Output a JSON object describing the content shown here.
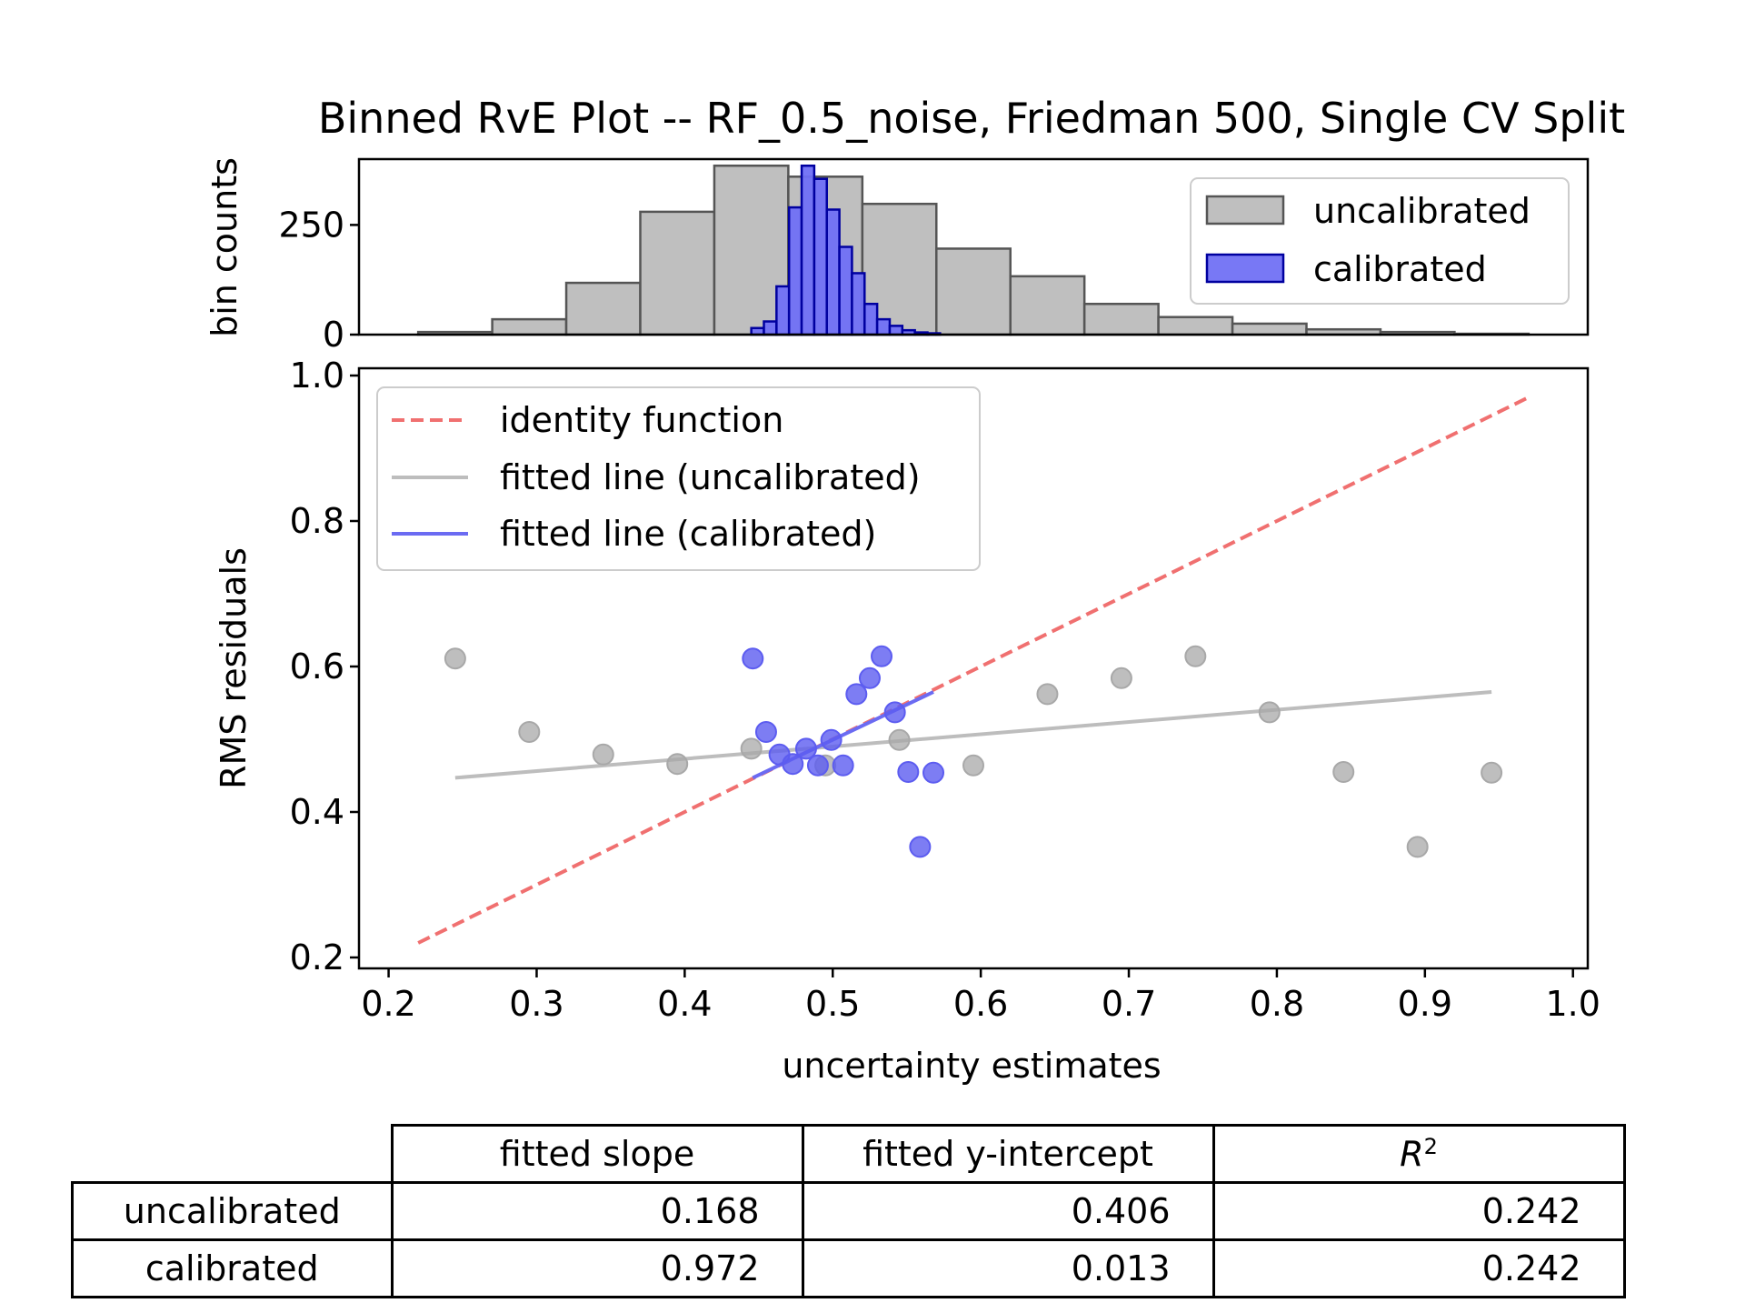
{
  "chart_data": [
    {
      "type": "bar",
      "subplot": "histogram",
      "title": "Binned RvE Plot -- RF_0.5_noise, Friedman 500, Single CV Split",
      "ylabel": "bin counts",
      "ylim": [
        0,
        400
      ],
      "yticks": [
        0,
        250
      ],
      "legend": {
        "placement": "top-right",
        "entries": [
          "uncalibrated",
          "calibrated"
        ]
      },
      "series": [
        {
          "name": "uncalibrated",
          "color": "#bfbfbf",
          "edge_color": "#555555",
          "bin_edges": [
            0.22,
            0.27,
            0.32,
            0.37,
            0.42,
            0.47,
            0.52,
            0.57,
            0.62,
            0.67,
            0.72,
            0.77,
            0.82,
            0.87,
            0.92,
            0.97
          ],
          "counts": [
            6,
            35,
            118,
            280,
            385,
            360,
            298,
            196,
            133,
            70,
            40,
            25,
            12,
            6,
            2
          ]
        },
        {
          "name": "calibrated",
          "color": "#7070f5",
          "edge_color": "#0000a0",
          "bin_edges": [
            0.445,
            0.4535,
            0.462,
            0.4705,
            0.479,
            0.4875,
            0.496,
            0.5045,
            0.513,
            0.5215,
            0.53,
            0.5385,
            0.547,
            0.5555,
            0.564,
            0.5725
          ],
          "counts": [
            15,
            30,
            110,
            290,
            385,
            355,
            285,
            200,
            140,
            70,
            35,
            20,
            10,
            5,
            3
          ]
        }
      ]
    },
    {
      "type": "scatter",
      "subplot": "rve",
      "xlabel": "uncertainty estimates",
      "ylabel": "RMS residuals",
      "xlim": [
        0.18,
        1.01
      ],
      "ylim": [
        0.185,
        1.01
      ],
      "xticks": [
        "0.2",
        "0.3",
        "0.4",
        "0.5",
        "0.6",
        "0.7",
        "0.8",
        "0.9",
        "1.0"
      ],
      "yticks": [
        "0.2",
        "0.4",
        "0.6",
        "0.8",
        "1.0"
      ],
      "legend": {
        "placement": "upper-left",
        "entries": [
          "identity function",
          "fitted line (uncalibrated)",
          "fitted line (calibrated)"
        ]
      },
      "lines": [
        {
          "name": "identity function",
          "style": "dashed",
          "color": "#f07070",
          "x": [
            0.22,
            0.97
          ],
          "y": [
            0.22,
            0.97
          ]
        },
        {
          "name": "fitted line (uncalibrated)",
          "style": "solid",
          "color": "#bdbdbd",
          "x": [
            0.245,
            0.945
          ],
          "y": [
            0.447,
            0.565
          ]
        },
        {
          "name": "fitted line (calibrated)",
          "style": "solid",
          "color": "#6b6bf2",
          "x": [
            0.446,
            0.568
          ],
          "y": [
            0.447,
            0.565
          ]
        }
      ],
      "series": [
        {
          "name": "uncalibrated",
          "color": "#a8a8a8",
          "points": [
            [
              0.245,
              0.611
            ],
            [
              0.295,
              0.51
            ],
            [
              0.345,
              0.479
            ],
            [
              0.395,
              0.466
            ],
            [
              0.445,
              0.487
            ],
            [
              0.495,
              0.464
            ],
            [
              0.545,
              0.499
            ],
            [
              0.595,
              0.464
            ],
            [
              0.645,
              0.562
            ],
            [
              0.695,
              0.584
            ],
            [
              0.745,
              0.614
            ],
            [
              0.795,
              0.537
            ],
            [
              0.845,
              0.455
            ],
            [
              0.895,
              0.352
            ],
            [
              0.945,
              0.454
            ]
          ]
        },
        {
          "name": "calibrated",
          "color": "#5c5cf0",
          "points": [
            [
              0.446,
              0.611
            ],
            [
              0.455,
              0.51
            ],
            [
              0.464,
              0.479
            ],
            [
              0.473,
              0.466
            ],
            [
              0.482,
              0.487
            ],
            [
              0.49,
              0.464
            ],
            [
              0.499,
              0.499
            ],
            [
              0.507,
              0.464
            ],
            [
              0.516,
              0.562
            ],
            [
              0.525,
              0.584
            ],
            [
              0.533,
              0.614
            ],
            [
              0.542,
              0.537
            ],
            [
              0.551,
              0.455
            ],
            [
              0.559,
              0.352
            ],
            [
              0.568,
              0.454
            ]
          ]
        }
      ]
    },
    {
      "type": "table",
      "columns": [
        "fitted slope",
        "fitted y-intercept",
        "R"
      ],
      "r2_superscript": "2",
      "rows": [
        {
          "label": "uncalibrated",
          "values": [
            "0.168",
            "0.406",
            "0.242"
          ]
        },
        {
          "label": "calibrated",
          "values": [
            "0.972",
            "0.013",
            "0.242"
          ]
        }
      ]
    }
  ]
}
